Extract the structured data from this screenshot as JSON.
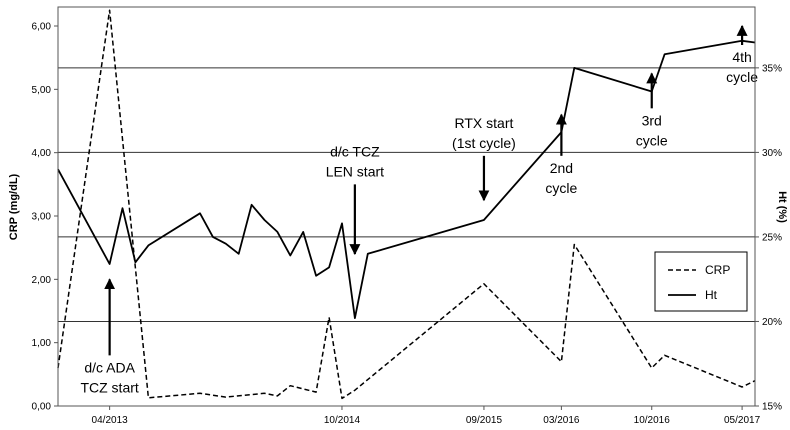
{
  "chart_data": {
    "type": "line",
    "ylabel_left": "CRP (mg/dL)",
    "ylabel_right": "Ht (%)",
    "ylim_left": [
      0,
      6.3
    ],
    "ylim_right": [
      15,
      38.6
    ],
    "yticks_left": [
      "0,00",
      "1,00",
      "2,00",
      "3,00",
      "4,00",
      "5,00",
      "6,00"
    ],
    "yticks_right": [
      "15%",
      "20%",
      "25%",
      "30%",
      "35%"
    ],
    "xticks": [
      "04/2013",
      "10/2014",
      "09/2015",
      "03/2016",
      "10/2016",
      "05/2017"
    ],
    "xlim": [
      "2012-12",
      "2017-06"
    ],
    "grid": "horizontal at right axis 20%, 25%, 30%, 35%",
    "legend_position": "right-middle",
    "series": [
      {
        "name": "CRP",
        "style": "dashed",
        "axis": "left",
        "points": [
          [
            "2012-12",
            0.6
          ],
          [
            "2013-04",
            6.25
          ],
          [
            "2013-07",
            0.13
          ],
          [
            "2013-11",
            0.2
          ],
          [
            "2014-01",
            0.14
          ],
          [
            "2014-04",
            0.2
          ],
          [
            "2014-05",
            0.16
          ],
          [
            "2014-06",
            0.32
          ],
          [
            "2014-08",
            0.22
          ],
          [
            "2014-09",
            1.4
          ],
          [
            "2014-10",
            0.12
          ],
          [
            "2014-11",
            0.25
          ],
          [
            "2015-09",
            1.93
          ],
          [
            "2016-03",
            0.7
          ],
          [
            "2016-04",
            2.55
          ],
          [
            "2016-10",
            0.6
          ],
          [
            "2016-11",
            0.8
          ],
          [
            "2017-05",
            0.3
          ],
          [
            "2017-06",
            0.4
          ]
        ]
      },
      {
        "name": "Ht",
        "style": "solid",
        "axis": "right",
        "points": [
          [
            "2012-12",
            29.0
          ],
          [
            "2013-04",
            23.4
          ],
          [
            "2013-05",
            26.7
          ],
          [
            "2013-06",
            23.5
          ],
          [
            "2013-07",
            24.5
          ],
          [
            "2013-11",
            26.4
          ],
          [
            "2013-12",
            25.0
          ],
          [
            "2014-01",
            24.6
          ],
          [
            "2014-02",
            24.0
          ],
          [
            "2014-03",
            26.9
          ],
          [
            "2014-04",
            26.0
          ],
          [
            "2014-05",
            25.3
          ],
          [
            "2014-06",
            23.9
          ],
          [
            "2014-07",
            25.3
          ],
          [
            "2014-08",
            22.7
          ],
          [
            "2014-09",
            23.2
          ],
          [
            "2014-10",
            25.8
          ],
          [
            "2014-11",
            20.2
          ],
          [
            "2014-12",
            24.0
          ],
          [
            "2015-09",
            26.0
          ],
          [
            "2016-03",
            31.2
          ],
          [
            "2016-04",
            35.0
          ],
          [
            "2016-10",
            33.6
          ],
          [
            "2016-11",
            35.8
          ],
          [
            "2017-05",
            36.6
          ],
          [
            "2017-06",
            36.5
          ]
        ]
      }
    ],
    "annotations": [
      {
        "lines": [
          "d/c ADA",
          "TCZ start"
        ],
        "date": "2013-04",
        "arrow": "up",
        "arrow_from": 0.8,
        "arrow_to": 2.0
      },
      {
        "lines": [
          "d/c TCZ",
          "LEN start"
        ],
        "date": "2014-11",
        "arrow": "down",
        "arrow_from": 3.5,
        "arrow_to": 2.4
      },
      {
        "lines": [
          "RTX start",
          "(1st cycle)"
        ],
        "date": "2015-09",
        "arrow": "down",
        "arrow_from": 3.95,
        "arrow_to": 3.25
      },
      {
        "lines": [
          "2nd",
          "cycle"
        ],
        "date": "2016-03",
        "arrow": "up",
        "arrow_from": 3.95,
        "arrow_to": 4.6
      },
      {
        "lines": [
          "3rd",
          "cycle"
        ],
        "date": "2016-10",
        "arrow": "up",
        "arrow_from": 4.7,
        "arrow_to": 5.25
      },
      {
        "lines": [
          "4th",
          "cycle"
        ],
        "date": "2017-05",
        "arrow": "up",
        "arrow_from": 5.7,
        "arrow_to": 6.0
      }
    ]
  }
}
